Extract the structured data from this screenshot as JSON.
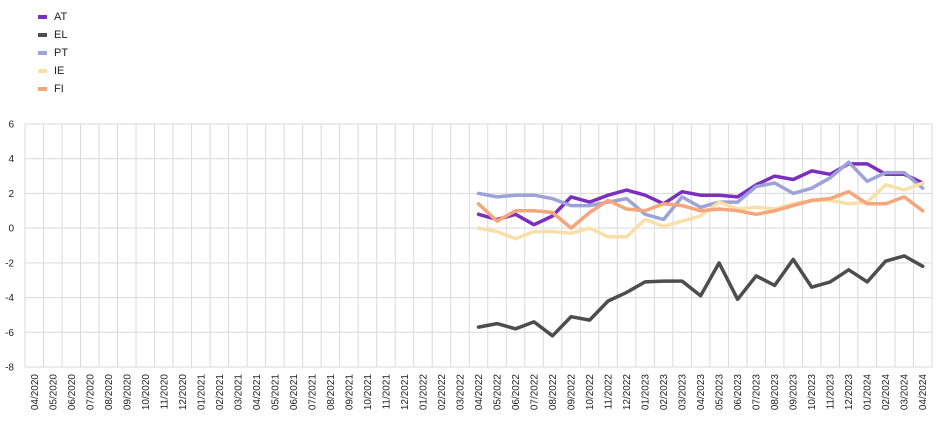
{
  "chart_data": {
    "type": "line",
    "title": "",
    "xlabel": "",
    "ylabel": "",
    "ylim": [
      -8,
      6
    ],
    "yticks": [
      -8,
      -6,
      -4,
      -2,
      0,
      2,
      4,
      6
    ],
    "grid": true,
    "legend_position": "top-left",
    "x": [
      "04/2020",
      "05/2020",
      "06/2020",
      "07/2020",
      "08/2020",
      "09/2020",
      "10/2020",
      "11/2020",
      "12/2020",
      "01/2021",
      "02/2021",
      "03/2021",
      "04/2021",
      "05/2021",
      "06/2021",
      "07/2021",
      "08/2021",
      "09/2021",
      "10/2021",
      "11/2021",
      "12/2021",
      "01/2022",
      "02/2022",
      "03/2022",
      "04/2022",
      "05/2022",
      "06/2022",
      "07/2022",
      "08/2022",
      "09/2022",
      "10/2022",
      "11/2022",
      "12/2022",
      "01/2023",
      "02/2023",
      "03/2023",
      "04/2023",
      "05/2023",
      "06/2023",
      "07/2023",
      "08/2023",
      "09/2023",
      "10/2023",
      "11/2023",
      "12/2023",
      "01/2024",
      "02/2024",
      "03/2024",
      "04/2024"
    ],
    "series": [
      {
        "name": "AT",
        "color": "#7b2fbe",
        "values": [
          null,
          null,
          null,
          null,
          null,
          null,
          null,
          null,
          null,
          null,
          null,
          null,
          null,
          null,
          null,
          null,
          null,
          null,
          null,
          null,
          null,
          null,
          null,
          null,
          0.8,
          0.5,
          0.8,
          0.2,
          0.7,
          1.8,
          1.5,
          1.9,
          2.2,
          1.9,
          1.4,
          2.1,
          1.9,
          1.9,
          1.8,
          2.5,
          3.0,
          2.8,
          3.3,
          3.1,
          3.7,
          3.7,
          3.1,
          3.1,
          2.6
        ]
      },
      {
        "name": "EL",
        "color": "#4d4d4d",
        "values": [
          null,
          null,
          null,
          null,
          null,
          null,
          null,
          null,
          null,
          null,
          null,
          null,
          null,
          null,
          null,
          null,
          null,
          null,
          null,
          null,
          null,
          null,
          null,
          null,
          -5.7,
          -5.5,
          -5.8,
          -5.4,
          -6.2,
          -5.1,
          -5.3,
          -4.2,
          -3.7,
          -3.1,
          -3.05,
          -3.05,
          -3.9,
          -2.0,
          -4.1,
          -2.75,
          -3.3,
          -1.8,
          -3.4,
          -3.1,
          -2.4,
          -3.1,
          -1.9,
          -1.6,
          -2.2
        ]
      },
      {
        "name": "PT",
        "color": "#9da3d8",
        "values": [
          null,
          null,
          null,
          null,
          null,
          null,
          null,
          null,
          null,
          null,
          null,
          null,
          null,
          null,
          null,
          null,
          null,
          null,
          null,
          null,
          null,
          null,
          null,
          null,
          2.0,
          1.8,
          1.9,
          1.9,
          1.7,
          1.3,
          1.3,
          1.5,
          1.7,
          0.8,
          0.5,
          1.8,
          1.2,
          1.5,
          1.5,
          2.4,
          2.6,
          2.0,
          2.3,
          2.9,
          3.8,
          2.7,
          3.2,
          3.2,
          2.3
        ]
      },
      {
        "name": "IE",
        "color": "#f9dfa8",
        "values": [
          null,
          null,
          null,
          null,
          null,
          null,
          null,
          null,
          null,
          null,
          null,
          null,
          null,
          null,
          null,
          null,
          null,
          null,
          null,
          null,
          null,
          null,
          null,
          null,
          0.0,
          -0.2,
          -0.6,
          -0.2,
          -0.2,
          -0.3,
          0.0,
          -0.5,
          -0.5,
          0.5,
          0.1,
          0.4,
          0.7,
          1.5,
          1.1,
          1.2,
          1.1,
          1.4,
          1.6,
          1.6,
          1.4,
          1.5,
          2.5,
          2.2,
          2.6
        ]
      },
      {
        "name": "FI",
        "color": "#f4a67c",
        "values": [
          null,
          null,
          null,
          null,
          null,
          null,
          null,
          null,
          null,
          null,
          null,
          null,
          null,
          null,
          null,
          null,
          null,
          null,
          null,
          null,
          null,
          null,
          null,
          null,
          1.4,
          0.4,
          1.0,
          1.0,
          0.9,
          0.0,
          0.9,
          1.6,
          1.1,
          1.0,
          1.4,
          1.3,
          1.0,
          1.1,
          1.0,
          0.8,
          1.0,
          1.3,
          1.6,
          1.7,
          2.1,
          1.4,
          1.4,
          1.8,
          1.0
        ]
      }
    ]
  }
}
